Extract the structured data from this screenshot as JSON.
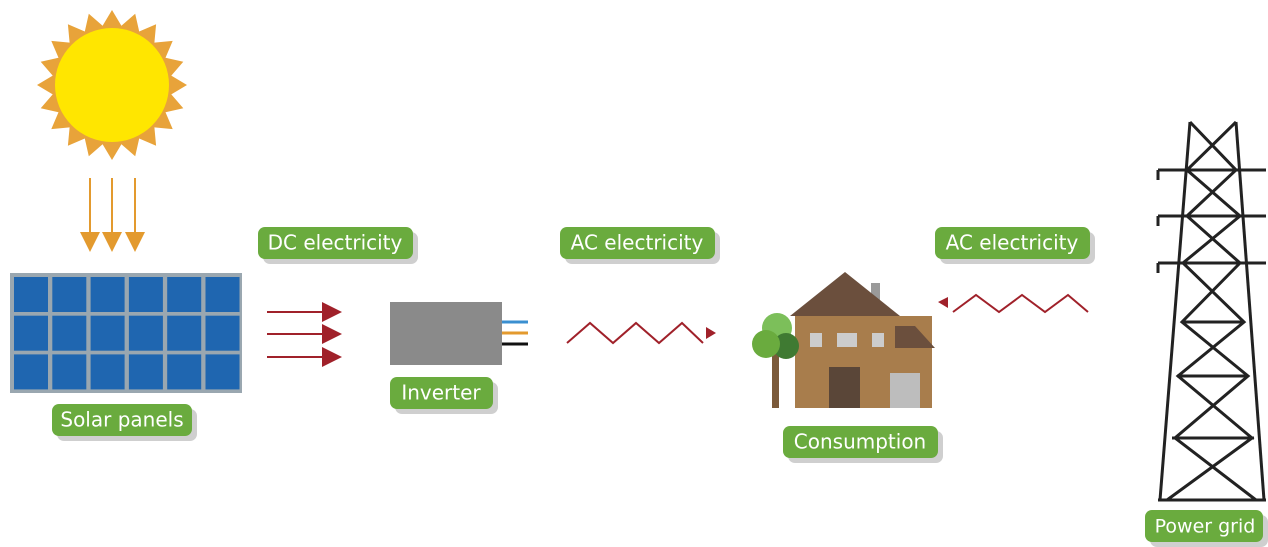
{
  "nodes": [
    {
      "label": "Solar panels"
    },
    {
      "label": "Inverter"
    },
    {
      "label": "Consumption"
    },
    {
      "label": "Power grid"
    }
  ],
  "flows": [
    {
      "label": "DC electricity"
    },
    {
      "label": "AC electricity"
    },
    {
      "label": "AC electricity"
    }
  ]
}
